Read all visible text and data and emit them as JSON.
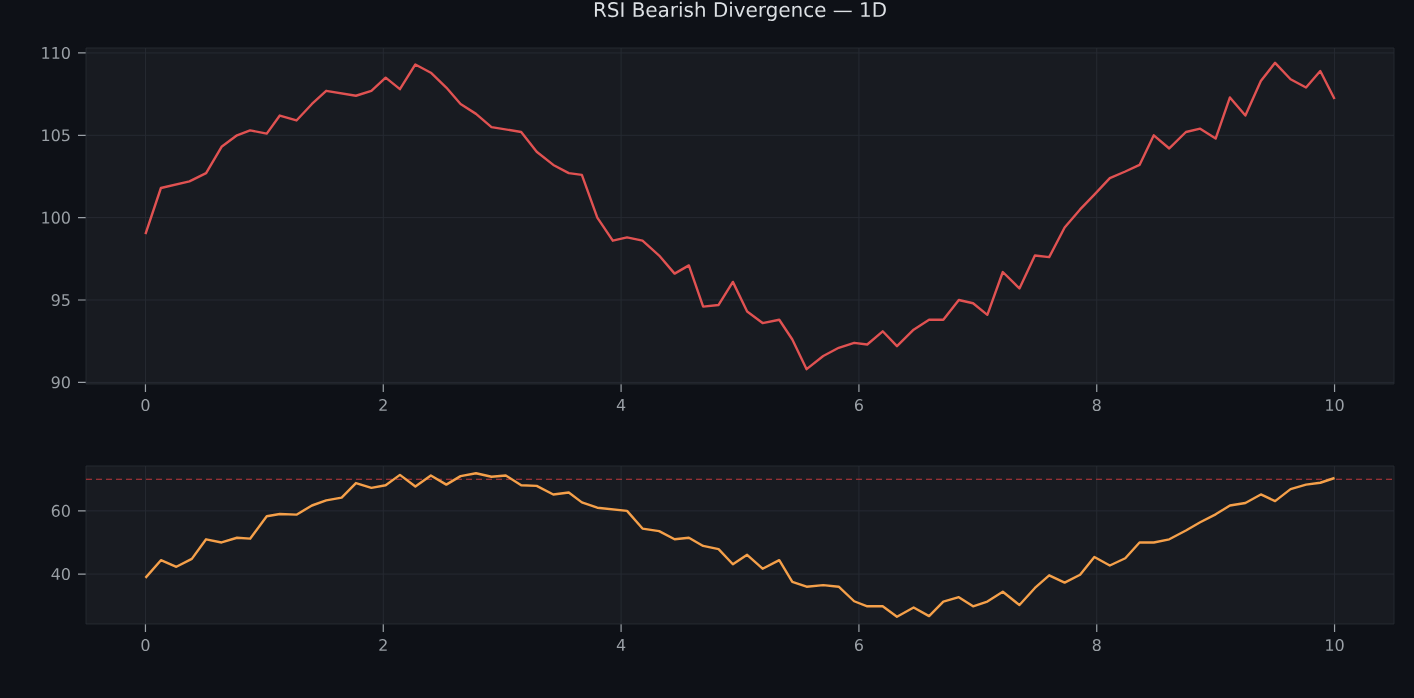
{
  "chart_data": [
    {
      "type": "line",
      "title": "RSI Bearish Divergence — 1D",
      "x": [
        0,
        0.13,
        0.37,
        0.51,
        0.64,
        0.77,
        0.88,
        1.02,
        1.13,
        1.27,
        1.4,
        1.52,
        1.77,
        1.9,
        2.02,
        2.14,
        2.27,
        2.4,
        2.53,
        2.65,
        2.78,
        2.91,
        3.16,
        3.29,
        3.43,
        3.56,
        3.67,
        3.8,
        3.93,
        4.05,
        4.18,
        4.32,
        4.45,
        4.57,
        4.69,
        4.82,
        4.94,
        5.06,
        5.19,
        5.33,
        5.44,
        5.56,
        5.7,
        5.83,
        5.96,
        6.07,
        6.2,
        6.32,
        6.46,
        6.59,
        6.71,
        6.84,
        6.96,
        7.08,
        7.21,
        7.35,
        7.48,
        7.6,
        7.73,
        7.86,
        7.98,
        8.11,
        8.24,
        8.36,
        8.48,
        8.61,
        8.75,
        8.87,
        9.0,
        9.12,
        9.25,
        9.38,
        9.5,
        9.63,
        9.76,
        9.88,
        10.0
      ],
      "series": [
        {
          "color": "#e05252",
          "values": [
            99.0,
            101.8,
            102.2,
            102.7,
            104.3,
            105.0,
            105.3,
            105.1,
            106.2,
            105.9,
            106.9,
            107.7,
            107.4,
            107.7,
            108.5,
            107.8,
            109.3,
            108.8,
            107.9,
            106.9,
            106.3,
            105.5,
            105.2,
            104.0,
            103.2,
            102.7,
            102.6,
            100.0,
            98.6,
            98.8,
            98.6,
            97.7,
            96.6,
            97.1,
            94.6,
            94.7,
            96.1,
            94.3,
            93.6,
            93.8,
            92.6,
            90.8,
            91.6,
            92.1,
            92.4,
            92.3,
            93.1,
            92.2,
            93.2,
            93.8,
            93.8,
            95.0,
            94.8,
            94.1,
            96.7,
            95.7,
            97.7,
            97.6,
            99.4,
            100.5,
            101.4,
            102.4,
            102.8,
            103.2,
            105.0,
            104.2,
            105.2,
            105.4,
            104.8,
            107.3,
            106.2,
            108.3,
            109.4,
            108.4,
            107.9,
            108.9,
            107.2
          ]
        }
      ],
      "xlim": [
        -0.5,
        10.5
      ],
      "ylim": [
        89.9,
        110.3
      ],
      "xticks": [
        0,
        2,
        4,
        6,
        8,
        10
      ],
      "yticks": [
        90,
        95,
        100,
        105,
        110
      ],
      "grid": true
    },
    {
      "type": "line",
      "x": [
        0,
        0.13,
        0.26,
        0.39,
        0.51,
        0.64,
        0.77,
        0.88,
        1.02,
        1.13,
        1.27,
        1.4,
        1.52,
        1.65,
        1.77,
        1.9,
        2.02,
        2.14,
        2.27,
        2.4,
        2.53,
        2.65,
        2.78,
        2.91,
        3.03,
        3.16,
        3.29,
        3.43,
        3.56,
        3.67,
        3.8,
        4.05,
        4.18,
        4.32,
        4.45,
        4.57,
        4.69,
        4.82,
        4.94,
        5.06,
        5.19,
        5.33,
        5.44,
        5.56,
        5.7,
        5.83,
        5.96,
        6.07,
        6.2,
        6.32,
        6.46,
        6.59,
        6.71,
        6.84,
        6.96,
        7.08,
        7.21,
        7.35,
        7.48,
        7.6,
        7.73,
        7.86,
        7.98,
        8.11,
        8.24,
        8.36,
        8.48,
        8.61,
        8.75,
        8.87,
        9.0,
        9.12,
        9.25,
        9.38,
        9.5,
        9.63,
        9.76,
        9.88,
        10.0
      ],
      "series": [
        {
          "color": "#f5a04a",
          "values": [
            38.8,
            44.4,
            42.3,
            44.8,
            51.0,
            50.0,
            51.5,
            51.2,
            58.3,
            59.0,
            58.8,
            61.7,
            63.3,
            64.2,
            68.8,
            67.3,
            68.1,
            71.4,
            67.7,
            71.2,
            68.3,
            71.0,
            71.9,
            70.8,
            71.2,
            68.1,
            67.9,
            65.2,
            65.8,
            62.7,
            61.0,
            60.0,
            54.4,
            53.6,
            51.0,
            51.5,
            48.9,
            47.9,
            43.1,
            46.1,
            41.7,
            44.4,
            37.5,
            36.0,
            36.5,
            36.0,
            31.4,
            29.8,
            29.8,
            26.5,
            29.4,
            26.7,
            31.3,
            32.7,
            29.8,
            31.3,
            34.4,
            30.2,
            35.6,
            39.6,
            37.3,
            39.8,
            45.4,
            42.7,
            45.0,
            50.0,
            50.0,
            51.0,
            53.8,
            56.4,
            58.9,
            61.7,
            62.5,
            65.2,
            63.1,
            66.9,
            68.3,
            68.9,
            70.4
          ]
        }
      ],
      "ref_lines": [
        {
          "axis": "y",
          "value": 70,
          "color": "#c0393b",
          "line_style": "dashed"
        }
      ],
      "xlim": [
        -0.5,
        10.5
      ],
      "ylim": [
        24.2,
        74.2
      ],
      "xticks": [
        0,
        2,
        4,
        6,
        8,
        10
      ],
      "yticks": [
        40,
        60
      ],
      "grid": true
    }
  ]
}
